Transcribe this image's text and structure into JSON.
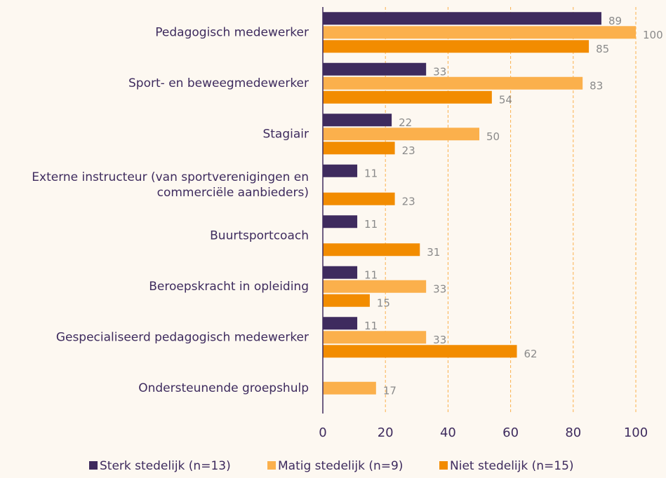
{
  "chart_data": {
    "type": "hbar",
    "categories": [
      "Pedagogisch medewerker",
      "Sport- en beweegmedewerker",
      "Stagiair",
      "Externe instructeur (van sportverenigingen en\ncommerciële aanbieders)",
      "Buurtsportcoach",
      "Beroepskracht in opleiding",
      "Gespecialiseerd pedagogisch medewerker",
      "Ondersteunende groepshulp"
    ],
    "series": [
      {
        "name": "Sterk stedelijk (n=13)",
        "color": "#3e2b5e",
        "values": [
          89,
          33,
          22,
          11,
          11,
          11,
          11,
          null
        ]
      },
      {
        "name": "Matig stedelijk (n=9)",
        "color": "#fbb04c",
        "values": [
          100,
          83,
          50,
          null,
          null,
          33,
          33,
          17
        ]
      },
      {
        "name": "Niet stedelijk (n=15)",
        "color": "#f28c00",
        "values": [
          85,
          54,
          23,
          23,
          31,
          15,
          62,
          null
        ]
      }
    ],
    "xlim": [
      0,
      100
    ],
    "xticks": [
      0,
      20,
      40,
      60,
      80,
      100
    ],
    "grid": true,
    "legend": "bottom"
  }
}
